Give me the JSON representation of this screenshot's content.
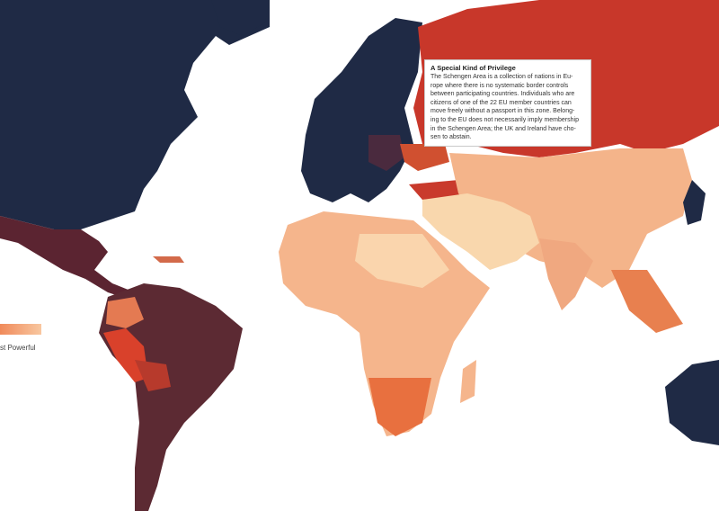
{
  "callout": {
    "title": "A Special Kind of Privilege",
    "lines": [
      "The Schengen Area is a collection of nations in Eu-",
      "rope where there is no systematic border controls",
      "between participating countries. Individuals who are",
      "citizens of one of the 22 EU member countries can",
      "move freely without a passport in this zone. Belong-",
      "ing to the EU does not necessarily imply membership",
      "in the Schengen Area; the UK and Ireland have cho-",
      "sen to abstain."
    ]
  },
  "legend": {
    "label": "st Powerful"
  }
}
